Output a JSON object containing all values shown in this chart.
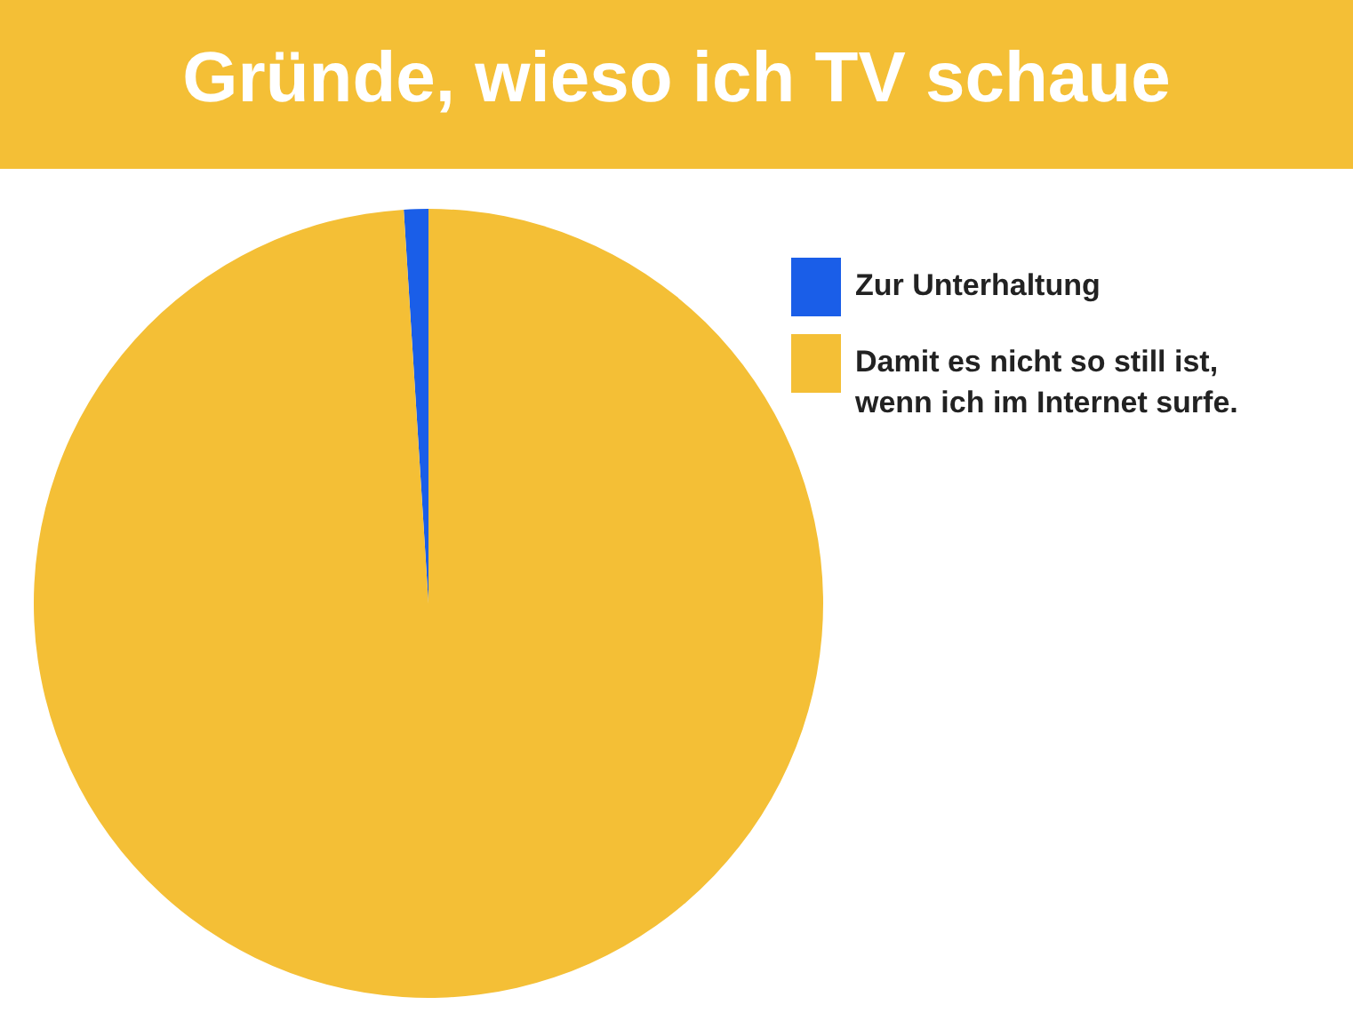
{
  "chart_data": {
    "type": "pie",
    "title": "Gründe, wieso ich TV schaue",
    "categories": [
      "Zur Unterhaltung",
      "Damit es nicht so still ist, wenn ich im Internet surfe."
    ],
    "values": [
      1,
      99
    ],
    "colors": [
      "#1a5ee8",
      "#f4bf36"
    ],
    "legend": "right"
  }
}
